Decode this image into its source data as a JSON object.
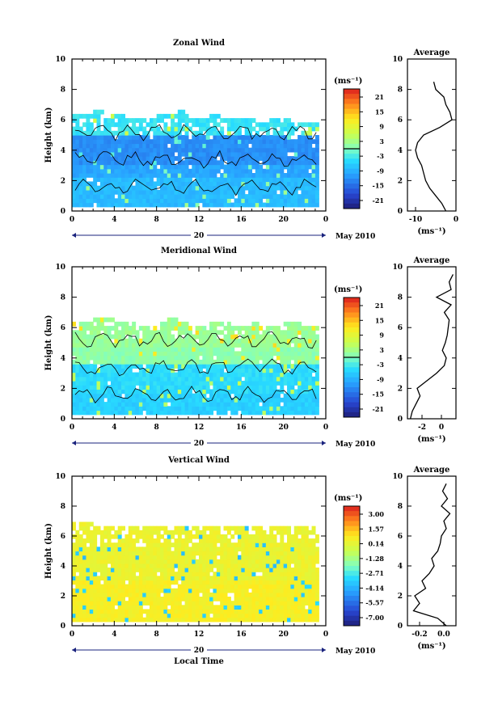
{
  "chart_data": [
    {
      "type": "heatmap",
      "title": "Zonal Wind",
      "ylabel": "Height (km)",
      "xlabel": "",
      "xlim": [
        0,
        24
      ],
      "ylim": [
        0,
        10
      ],
      "x_ticks": [
        "0",
        "4",
        "8",
        "12",
        "16",
        "20",
        "0"
      ],
      "y_ticks": [
        "0",
        "2",
        "4",
        "6",
        "8",
        "10"
      ],
      "date_marker": "20",
      "date_label": "May 2010",
      "colorbar_unit": "(ms⁻¹)",
      "colorbar_ticks": [
        "21",
        "15",
        "9",
        "3",
        "-3",
        "-9",
        "-15",
        "-21"
      ],
      "colorbar_range": [
        -24,
        24
      ],
      "zero_contour": true,
      "data_top_km": [
        6.2,
        6.2,
        6.4,
        6.3,
        6.2,
        6.1,
        6.0,
        6.1,
        6.2,
        6.3,
        6.4,
        6.1,
        6.0,
        6.2,
        6.1,
        6.0,
        5.9,
        6.0,
        6.1,
        6.0,
        5.9,
        5.8,
        5.8,
        5.7
      ],
      "typical_values": [
        {
          "height_range_km": [
            0,
            2
          ],
          "value": -8
        },
        {
          "height_range_km": [
            2,
            3
          ],
          "value": -10
        },
        {
          "height_range_km": [
            3,
            5
          ],
          "value": -12
        },
        {
          "height_range_km": [
            5,
            6
          ],
          "value": -4
        }
      ],
      "average_profile": {
        "title": "Average",
        "xlabel": "(ms⁻¹)",
        "x_ticks": [
          "-10",
          "0"
        ],
        "xlim": [
          -12,
          0
        ],
        "heights": [
          0,
          0.5,
          1,
          1.5,
          2,
          2.5,
          3,
          3.5,
          4,
          4.5,
          5,
          5.5,
          6,
          6.5,
          7,
          7.5,
          8,
          8.5
        ],
        "values": [
          -2.5,
          -3.5,
          -5,
          -6.5,
          -7.5,
          -8,
          -8.5,
          -9.5,
          -10,
          -9.5,
          -8,
          -4,
          -1,
          -1.5,
          -2.5,
          -3,
          -5,
          -5.5
        ]
      }
    },
    {
      "type": "heatmap",
      "title": "Meridional Wind",
      "ylabel": "Height (km)",
      "xlabel": "",
      "xlim": [
        0,
        24
      ],
      "ylim": [
        0,
        10
      ],
      "x_ticks": [
        "0",
        "4",
        "8",
        "12",
        "16",
        "20",
        "0"
      ],
      "y_ticks": [
        "0",
        "2",
        "4",
        "6",
        "8",
        "10"
      ],
      "date_marker": "20",
      "date_label": "May 2010",
      "colorbar_unit": "(ms⁻¹)",
      "colorbar_ticks": [
        "21",
        "15",
        "9",
        "3",
        "-3",
        "-9",
        "-15",
        "-21"
      ],
      "colorbar_range": [
        -24,
        24
      ],
      "zero_contour": true,
      "data_top_km": [
        6.3,
        6.2,
        6.5,
        6.4,
        6.3,
        6.2,
        6.1,
        6.0,
        6.3,
        6.4,
        6.2,
        6.1,
        6.0,
        6.2,
        6.3,
        6.1,
        6.0,
        6.2,
        6.1,
        6.0,
        6.3,
        6.2,
        6.1,
        6.0
      ],
      "typical_values": [
        {
          "height_range_km": [
            0,
            1.5
          ],
          "value": -6
        },
        {
          "height_range_km": [
            1.5,
            3.5
          ],
          "value": -5
        },
        {
          "height_range_km": [
            3.5,
            4.5
          ],
          "value": 1
        },
        {
          "height_range_km": [
            4.5,
            6.5
          ],
          "value": 2
        }
      ],
      "average_profile": {
        "title": "Average",
        "xlabel": "(ms⁻¹)",
        "x_ticks": [
          "-2",
          "0"
        ],
        "xlim": [
          -3.5,
          1.5
        ],
        "heights": [
          0,
          0.5,
          1,
          1.5,
          2,
          2.5,
          3,
          3.5,
          4,
          4.5,
          5,
          5.5,
          6,
          6.5,
          7,
          7.5,
          8,
          8.5,
          9,
          9.5
        ],
        "values": [
          -3.2,
          -3,
          -2.6,
          -2.2,
          -2.5,
          -1.5,
          -0.5,
          0.3,
          0.5,
          0.1,
          0.4,
          0.6,
          0.7,
          0.8,
          0.3,
          1,
          -0.5,
          1,
          0.8,
          1.2
        ]
      }
    },
    {
      "type": "heatmap",
      "title": "Vertical Wind",
      "ylabel": "Height (km)",
      "xlabel": "Local Time",
      "xlim": [
        0,
        24
      ],
      "ylim": [
        0,
        10
      ],
      "x_ticks": [
        "0",
        "4",
        "8",
        "12",
        "16",
        "20",
        "0"
      ],
      "y_ticks": [
        "0",
        "2",
        "4",
        "6",
        "8",
        "10"
      ],
      "date_marker": "20",
      "date_label": "May 2010",
      "colorbar_unit": "(ms⁻¹)",
      "colorbar_ticks": [
        "3.00",
        "1.57",
        "0.14",
        "-1.28",
        "-2.71",
        "-4.14",
        "-5.57",
        "-7.00"
      ],
      "colorbar_range": [
        -7.7,
        3.7
      ],
      "zero_contour": false,
      "data_top_km": [
        7.2,
        6.8,
        6.6,
        6.5,
        6.6,
        6.5,
        6.4,
        6.5,
        6.6,
        6.5,
        6.4,
        6.5,
        6.6,
        6.4,
        6.5,
        6.6,
        6.5,
        6.4,
        6.5,
        6.6,
        6.5,
        6.4,
        6.5,
        6.3
      ],
      "typical_values": [
        {
          "height_range_km": [
            0,
            3
          ],
          "value": 0.6
        },
        {
          "height_range_km": [
            3,
            6.5
          ],
          "value": 0.3
        }
      ],
      "average_profile": {
        "title": "Average",
        "xlabel": "(ms⁻¹)",
        "x_ticks": [
          "-0.2",
          "0.0"
        ],
        "xlim": [
          -0.3,
          0.1
        ],
        "heights": [
          0,
          0.5,
          1,
          1.5,
          2,
          2.5,
          3,
          3.5,
          4,
          4.5,
          5,
          5.5,
          6,
          6.5,
          7,
          7.5,
          8,
          8.5,
          9,
          9.5
        ],
        "values": [
          0.02,
          -0.05,
          -0.25,
          -0.2,
          -0.24,
          -0.15,
          -0.18,
          -0.12,
          -0.08,
          -0.1,
          -0.05,
          -0.03,
          -0.02,
          0.02,
          0,
          0.05,
          -0.02,
          0.03,
          -0.01,
          0.02
        ]
      }
    }
  ]
}
